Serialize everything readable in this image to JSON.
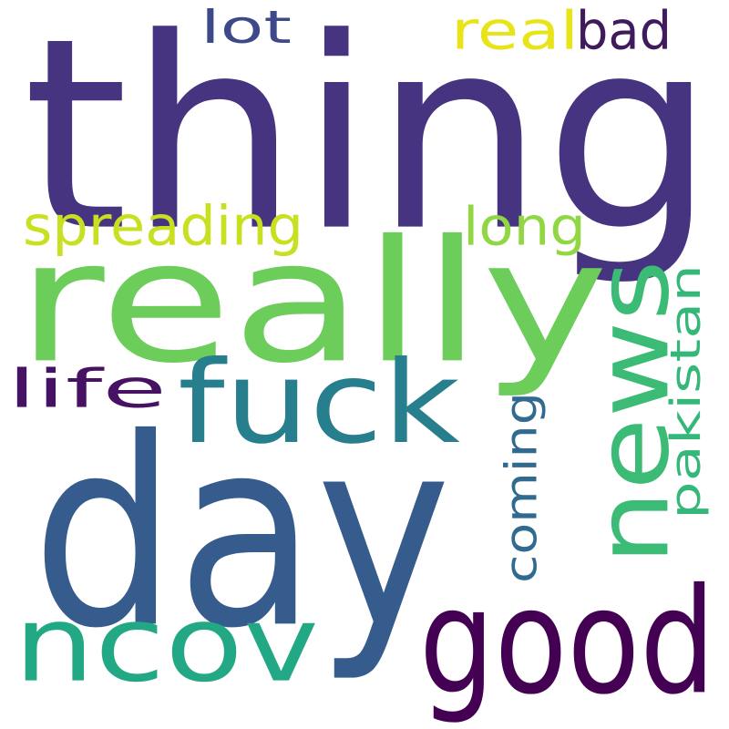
{
  "word_cloud": {
    "words": [
      {
        "id": "thing",
        "text": "thing",
        "color": "#463480"
      },
      {
        "id": "really",
        "text": "really",
        "color": "#6ccd5a"
      },
      {
        "id": "day",
        "text": "day",
        "color": "#365c8d"
      },
      {
        "id": "news",
        "text": "news",
        "color": "#3bbb75"
      },
      {
        "id": "good",
        "text": "good",
        "color": "#440154"
      },
      {
        "id": "ncov",
        "text": "ncov",
        "color": "#22a884"
      },
      {
        "id": "fuck",
        "text": "fuck",
        "color": "#277f8e"
      },
      {
        "id": "spreading",
        "text": "spreading",
        "color": "#c8e020"
      },
      {
        "id": "life",
        "text": "life",
        "color": "#471164"
      },
      {
        "id": "long",
        "text": "long",
        "color": "#90d743"
      },
      {
        "id": "pakistan",
        "text": "pakistan",
        "color": "#35b779"
      },
      {
        "id": "coming",
        "text": "coming",
        "color": "#306a8e"
      },
      {
        "id": "lot",
        "text": "lot",
        "color": "#3e4989"
      },
      {
        "id": "real",
        "text": "real",
        "color": "#e8e419"
      },
      {
        "id": "bad",
        "text": "bad",
        "color": "#3f1a5c"
      }
    ]
  }
}
